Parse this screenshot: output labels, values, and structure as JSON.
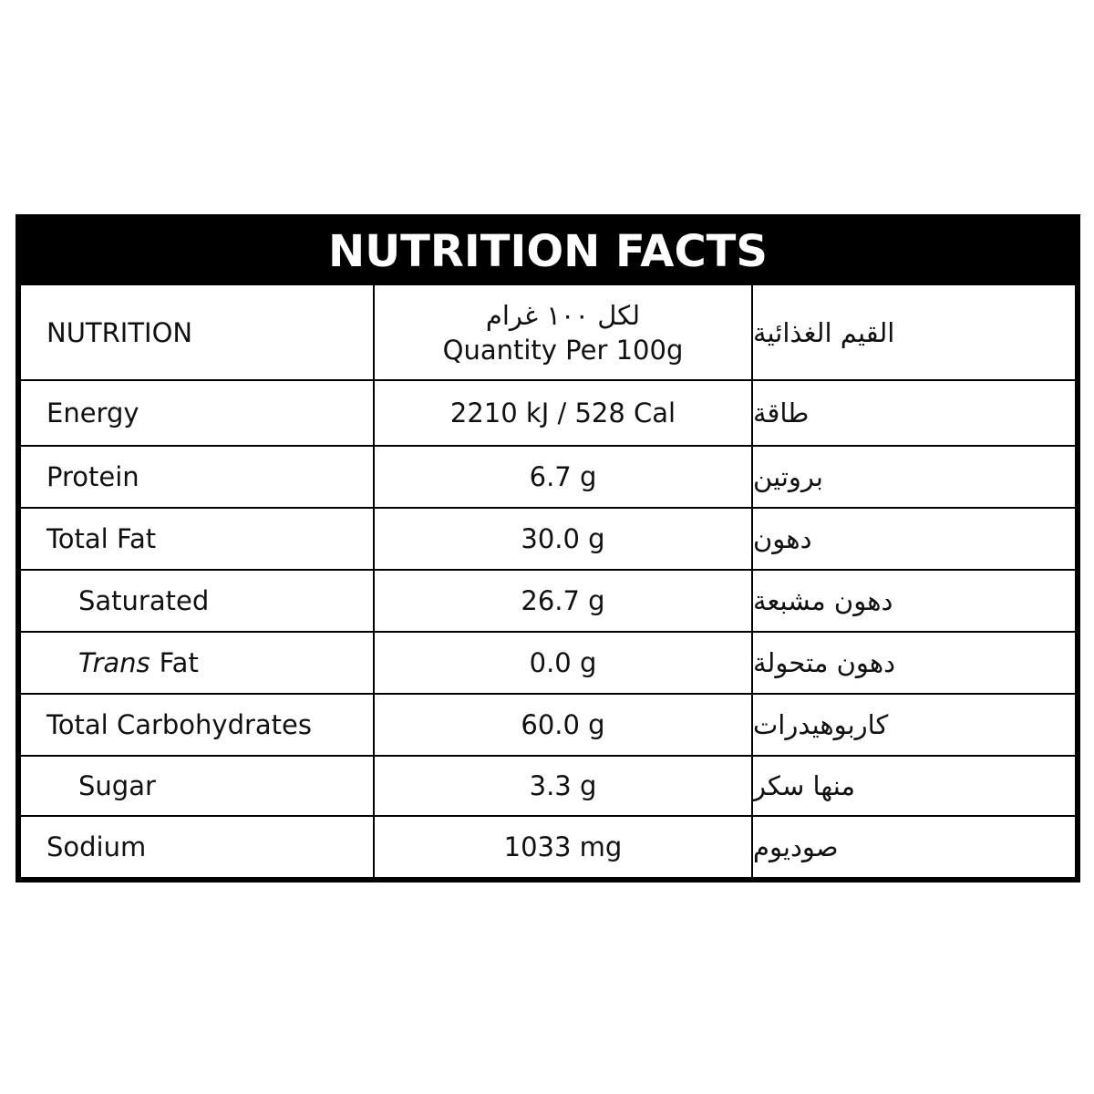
{
  "title": "NUTRITION FACTS",
  "header": {
    "nutrition": "NUTRITION",
    "quantity_ar": "لكل ١٠٠ غرام",
    "quantity_en": "Quantity Per 100g",
    "nutrition_ar": "القيم الغذائية"
  },
  "rows": [
    {
      "name": "Energy",
      "amount": "2210 kJ / 528 Cal",
      "name_ar": "طاقة"
    },
    {
      "name": "Protein",
      "amount": "6.7 g",
      "name_ar": "بروتين"
    },
    {
      "name": "Total Fat",
      "amount": "30.0 g",
      "name_ar": "دهون"
    },
    {
      "name": "Saturated",
      "amount": "26.7 g",
      "name_ar": "دهون مشبعة"
    },
    {
      "name_italic": "Trans",
      "name": "Fat",
      "amount": "0.0 g",
      "name_ar": "دهون متحولة"
    },
    {
      "name": "Total Carbohydrates",
      "amount": "60.0 g",
      "name_ar": "كاربوهيدرات"
    },
    {
      "name": "Sugar",
      "amount": "3.3 g",
      "name_ar": "منها سكر"
    },
    {
      "name": "Sodium",
      "amount": "1033 mg",
      "name_ar": "صوديوم"
    }
  ]
}
